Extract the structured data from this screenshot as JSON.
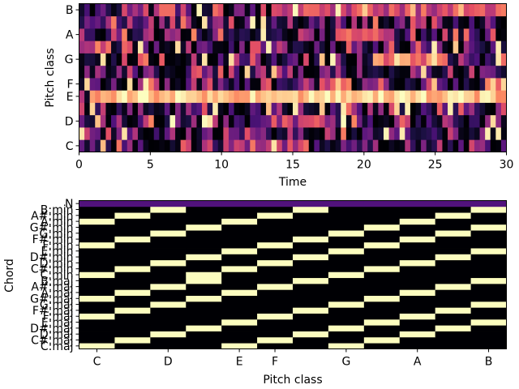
{
  "chart_data": [
    {
      "type": "heatmap",
      "title": "",
      "xlabel": "Time",
      "ylabel": "Pitch class",
      "xlim": [
        0,
        30
      ],
      "x_ticks": [
        0,
        5,
        10,
        15,
        20,
        25,
        30
      ],
      "y_ticks": [
        "C",
        "D",
        "E",
        "F",
        "G",
        "A",
        "B"
      ],
      "y_tick_pitch_index": [
        0,
        2,
        4,
        5,
        7,
        9,
        11
      ],
      "pitch_classes": 12,
      "colormap": "magma",
      "frames": 80,
      "dominant_bands": [
        {
          "pitch": "E",
          "from": 0.8,
          "to": 30,
          "level": 0.88
        },
        {
          "pitch": "B",
          "from": 13.5,
          "to": 30,
          "level": 0.55
        },
        {
          "pitch": "G",
          "from": 20.5,
          "to": 26,
          "level": 0.7
        },
        {
          "pitch": "A",
          "from": 18,
          "to": 22,
          "level": 0.6
        },
        {
          "pitch": "C",
          "from": 10,
          "to": 16,
          "level": 0.45
        },
        {
          "pitch": "D",
          "from": 13,
          "to": 18,
          "level": 0.45
        }
      ]
    },
    {
      "type": "heatmap",
      "title": "",
      "xlabel": "Pitch class",
      "ylabel": "Chord",
      "x_ticks": [
        "C",
        "D",
        "E",
        "F",
        "G",
        "A",
        "B"
      ],
      "x_tick_pitch_index": [
        0,
        2,
        4,
        5,
        7,
        9,
        11
      ],
      "chords": [
        "C:maj",
        "C#:maj",
        "D:maj",
        "D#:maj",
        "E:maj",
        "F:maj",
        "F#:maj",
        "G:maj",
        "G#:maj",
        "A:maj",
        "A#:maj",
        "B:maj",
        "C:min",
        "C#:min",
        "D:min",
        "D#:min",
        "E:min",
        "F:min",
        "F#:min",
        "G:min",
        "G#:min",
        "A:min",
        "A#:min",
        "B:min",
        "N"
      ],
      "y_tick_labels": [
        "C:maj",
        "C#:maj",
        "D:maj",
        "D#:maj",
        "E:maj",
        "F:maj",
        "F#:maj",
        "G:maj",
        "G#:maj",
        "A:maj",
        "A#:maj",
        "B:maj",
        "C:min",
        "C#:min",
        "D:min",
        "D#:min",
        "E:min",
        "F:min",
        "F#:min",
        "G:min",
        "G#:min",
        "A:min",
        "A#:min",
        "B:min",
        "N"
      ],
      "template": "binary triad templates: major = root, +4, +7 semitones; minor = root, +3, +7 semitones; N = no-chord row",
      "on_value": 1,
      "off_value": 0,
      "no_chord_value": 0.25,
      "colormap": "magma"
    }
  ],
  "colors": {
    "on": "#fcfdbf",
    "off": "#000004",
    "no_chord": "#51127c"
  }
}
